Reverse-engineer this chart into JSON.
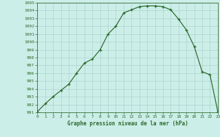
{
  "x": [
    0,
    1,
    2,
    3,
    4,
    5,
    6,
    7,
    8,
    9,
    10,
    11,
    12,
    13,
    14,
    15,
    16,
    17,
    18,
    19,
    20,
    21,
    22,
    23
  ],
  "y": [
    991.1,
    992.1,
    993.0,
    993.8,
    994.6,
    996.0,
    997.3,
    997.8,
    999.0,
    1001.0,
    1002.0,
    1003.7,
    1004.1,
    1004.5,
    1004.6,
    1004.6,
    1004.5,
    1004.1,
    1002.9,
    1001.5,
    999.4,
    996.2,
    995.8,
    991.1
  ],
  "xlabel": "Graphe pression niveau de la mer (hPa)",
  "xlim": [
    0,
    23
  ],
  "ylim": [
    991,
    1005
  ],
  "yticks": [
    991,
    992,
    993,
    994,
    995,
    996,
    997,
    998,
    999,
    1000,
    1001,
    1002,
    1003,
    1004,
    1005
  ],
  "xticks": [
    0,
    1,
    2,
    3,
    4,
    5,
    6,
    7,
    8,
    9,
    10,
    11,
    12,
    13,
    14,
    15,
    16,
    17,
    18,
    19,
    20,
    21,
    22,
    23
  ],
  "line_color": "#2d6a2d",
  "marker_color": "#2d6a2d",
  "bg_color": "#cceee8",
  "grid_color": "#aad4cc",
  "xlabel_color": "#2d6a2d",
  "tick_color": "#2d6a2d",
  "spine_color": "#2d6a2d"
}
